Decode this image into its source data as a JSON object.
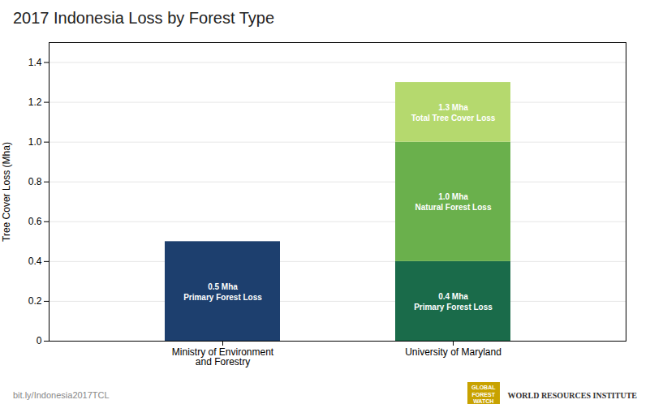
{
  "chart_data": {
    "type": "bar",
    "stacked": true,
    "title": "2017 Indonesia Loss by Forest Type",
    "ylabel": "Tree Cover Loss (Mha)",
    "categories": [
      "Ministry of Environment\nand Forestry",
      "University of Maryland"
    ],
    "series": [
      {
        "colors": [
          "#1d3f6e",
          "#1a6b4a"
        ],
        "values": [
          0.5,
          0.4
        ],
        "value_labels": [
          "0.5 Mha\nPrimary Forest Loss",
          "0.4 Mha\nPrimary Forest Loss"
        ]
      },
      {
        "color": "#6ab04c",
        "values": [
          null,
          0.6
        ],
        "value_labels": [
          null,
          "1.0 Mha\nNatural Forest Loss"
        ]
      },
      {
        "color": "#b5d96e",
        "values": [
          null,
          0.3
        ],
        "value_labels": [
          null,
          "1.3 Mha\nTotal Tree Cover Loss"
        ]
      }
    ],
    "data_labels": true,
    "ylim": [
      0,
      1.5
    ],
    "yticks": [
      0,
      0.2,
      0.4,
      0.6,
      0.8,
      {
        "value": 1.0,
        "label": "1.0"
      },
      1.2,
      1.4
    ],
    "grid": true,
    "annotations": [
      "bit.ly/Indonesia2017TCL",
      "GLOBAL\nFOREST\nWATCH",
      "WORLD RESOURCES INSTITUTE"
    ]
  }
}
